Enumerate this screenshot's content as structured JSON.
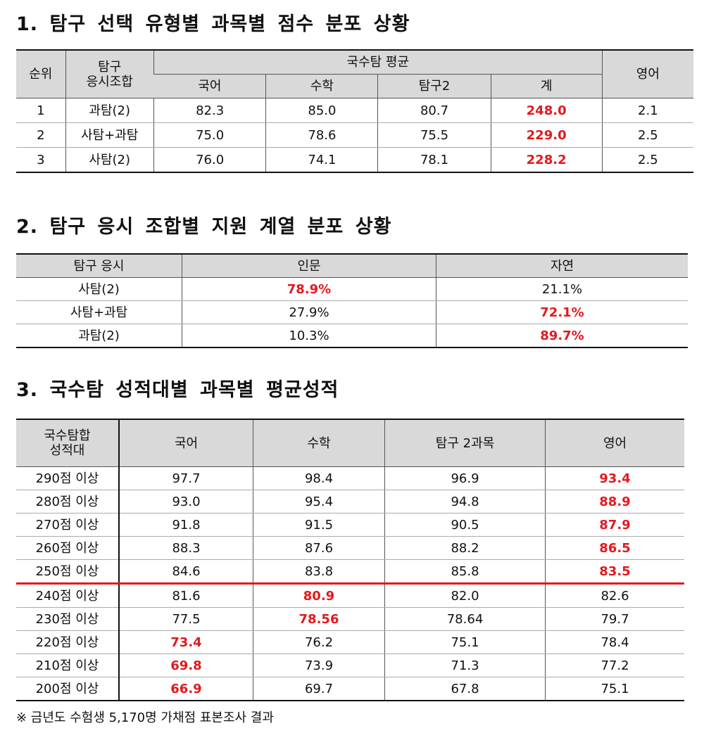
{
  "table1": {
    "title": "1. 탐구 선택 유형별 과목별 점수 분포 상황",
    "headers": {
      "rank": "순위",
      "combo": [
        "탐구",
        "응시조합"
      ],
      "group": "국수탐 평균",
      "subjects": [
        "국어",
        "수학",
        "탐구2",
        "계"
      ],
      "english": "영어"
    },
    "rows": [
      [
        "1",
        "과탐(2)",
        "82.3",
        "85.0",
        "80.7",
        {
          "text": "248.0",
          "color": "#e3191e"
        },
        "2.1"
      ],
      [
        "2",
        "사탐+과탐",
        "75.0",
        "78.6",
        "75.5",
        {
          "text": "229.0",
          "color": "#e3191e"
        },
        "2.5"
      ],
      [
        "3",
        "사탐(2)",
        "76.0",
        "74.1",
        "78.1",
        {
          "text": "228.2",
          "color": "#e3191e"
        },
        "2.5"
      ]
    ]
  },
  "table2": {
    "title": "2. 탐구 응시 조합별 지원 계열 분포 상황",
    "headers": [
      "탐구 응시",
      "인문",
      "자연"
    ],
    "rows": [
      [
        "사탐(2)",
        {
          "text": "78.9%",
          "color": "#e3191e"
        },
        "21.1%"
      ],
      [
        "사탐+과탐",
        "27.9%",
        {
          "text": "72.1%",
          "color": "#e3191e"
        }
      ],
      [
        "과탐(2)",
        "10.3%",
        {
          "text": "89.7%",
          "color": "#e3191e"
        }
      ]
    ]
  },
  "table3": {
    "title": "3. 국수탐 성적대별 과목별 평균성적",
    "headers": {
      "band": [
        "국수탐합",
        "성적대"
      ],
      "subjects": [
        "국어",
        "수학",
        "탐구 2과목",
        "영어"
      ]
    },
    "rows": [
      [
        "290점 이상",
        "97.7",
        "98.4",
        "96.9",
        {
          "text": "93.4",
          "color": "#e3191e"
        }
      ],
      [
        "280점 이상",
        "93.0",
        "95.4",
        "94.8",
        {
          "text": "88.9",
          "color": "#e3191e"
        }
      ],
      [
        "270점 이상",
        "91.8",
        "91.5",
        "90.5",
        {
          "text": "87.9",
          "color": "#e3191e"
        }
      ],
      [
        "260점 이상",
        "88.3",
        "87.6",
        "88.2",
        {
          "text": "86.5",
          "color": "#e3191e"
        }
      ],
      [
        "250점 이상",
        "84.6",
        "83.8",
        "85.8",
        {
          "text": "83.5",
          "color": "#e3191e"
        }
      ],
      [
        "240점 이상",
        "81.6",
        {
          "text": "80.9",
          "color": "#e3191e"
        },
        "82.0",
        "82.6"
      ],
      [
        "230점 이상",
        "77.5",
        {
          "text": "78.56",
          "color": "#e3191e"
        },
        "78.64",
        "79.7"
      ],
      [
        "220점 이상",
        {
          "text": "73.4",
          "color": "#e3191e"
        },
        "76.2",
        "75.1",
        "78.4"
      ],
      [
        "210점 이상",
        {
          "text": "69.8",
          "color": "#e3191e"
        },
        "73.9",
        "71.3",
        "77.2"
      ],
      [
        "200점 이상",
        {
          "text": "66.9",
          "color": "#e3191e"
        },
        "69.7",
        "67.8",
        "75.1"
      ]
    ]
  },
  "footnote": "※ 금년도 수험생 5,170명 가채점 표본조사 결과"
}
